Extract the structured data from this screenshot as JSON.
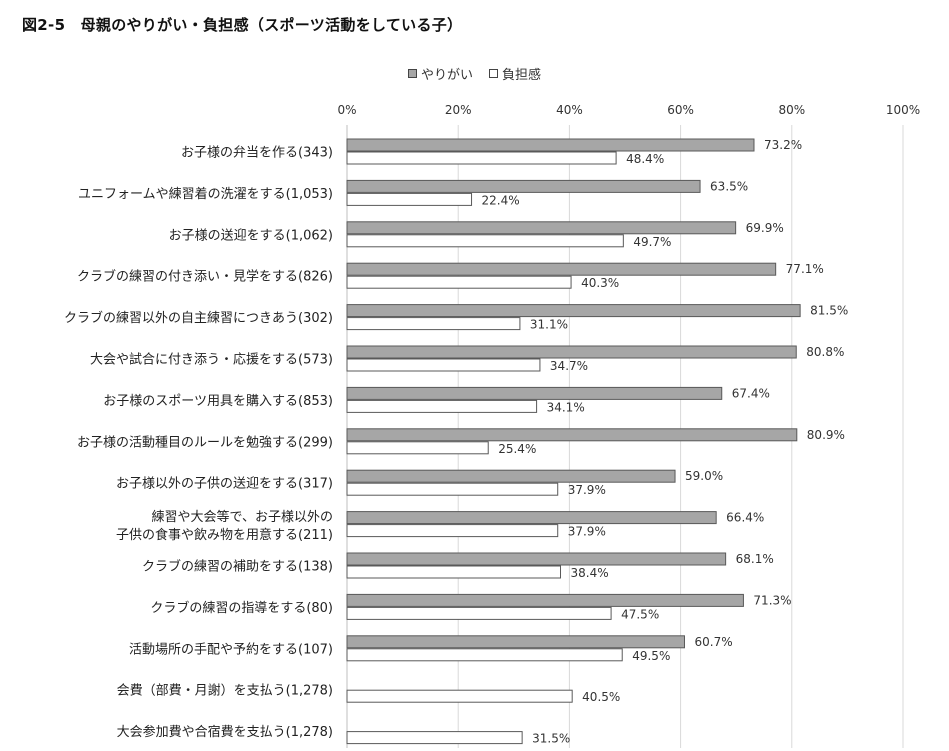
{
  "chart_data": {
    "type": "bar",
    "orientation": "horizontal",
    "title": "図2-5　母親のやりがい・負担感（スポーツ活動をしている子）",
    "xlim": [
      0,
      100
    ],
    "xticks": [
      "0%",
      "20%",
      "40%",
      "60%",
      "80%",
      "100%"
    ],
    "tick_values": [
      0,
      20,
      40,
      60,
      80,
      100
    ],
    "grid": true,
    "legend_position": "top-center",
    "colors": {
      "primary": "#a6a6a6",
      "secondary": "#ffffff",
      "border": "#595959",
      "grid": "#d9d9d9"
    },
    "categories": [
      [
        "お子様の弁当を作る(343)"
      ],
      [
        "ユニフォームや練習着の洗濯をする(1,053)"
      ],
      [
        "お子様の送迎をする(1,062)"
      ],
      [
        "クラブの練習の付き添い・見学をする(826)"
      ],
      [
        "クラブの練習以外の自主練習につきあう(302)"
      ],
      [
        "大会や試合に付き添う・応援をする(573)"
      ],
      [
        "お子様のスポーツ用具を購入する(853)"
      ],
      [
        "お子様の活動種目のルールを勉強する(299)"
      ],
      [
        "お子様以外の子供の送迎をする(317)"
      ],
      [
        "練習や大会等で、お子様以外の",
        "子供の食事や飲み物を用意する(211)"
      ],
      [
        "クラブの練習の補助をする(138)"
      ],
      [
        "クラブの練習の指導をする(80)"
      ],
      [
        "活動場所の手配や予約をする(107)"
      ],
      [
        "会費（部費・月謝）を支払う(1,278)"
      ],
      [
        "大会参加費や合宿費を支払う(1,278)"
      ]
    ],
    "series": [
      {
        "name": "やりがい",
        "values": [
          73.2,
          63.5,
          69.9,
          77.1,
          81.5,
          80.8,
          67.4,
          80.9,
          59.0,
          66.4,
          68.1,
          71.3,
          60.7,
          null,
          null
        ]
      },
      {
        "name": "負担感",
        "values": [
          48.4,
          22.4,
          49.7,
          40.3,
          31.1,
          34.7,
          34.1,
          25.4,
          37.9,
          37.9,
          38.4,
          47.5,
          49.5,
          40.5,
          31.5
        ]
      }
    ]
  }
}
